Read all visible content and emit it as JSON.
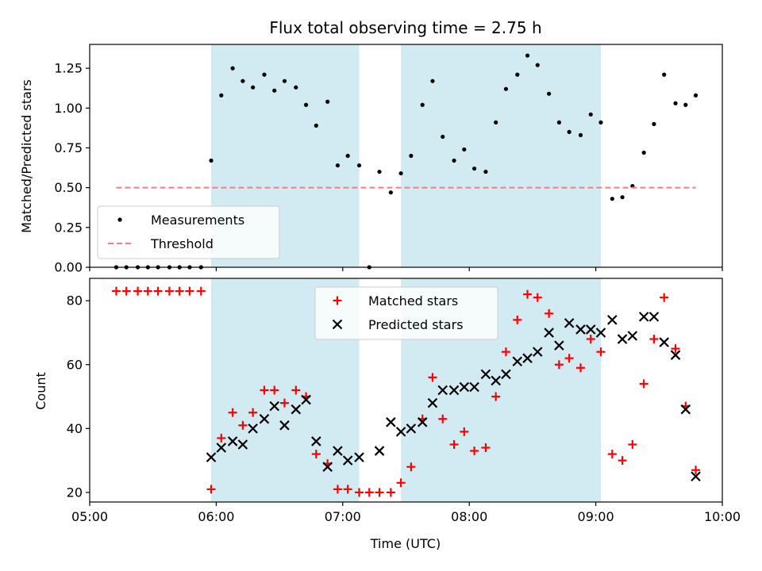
{
  "chart_data": {
    "type": "scatter",
    "title": "Flux total observing time = 2.75 h",
    "xlabel": "Time (UTC)",
    "x_unit": "hours UTC",
    "xlim": [
      5.0,
      10.0
    ],
    "x_ticks": [
      5,
      6,
      7,
      8,
      9,
      10
    ],
    "x_tick_labels": [
      "05:00",
      "06:00",
      "07:00",
      "08:00",
      "09:00",
      "10:00"
    ],
    "shaded_intervals": [
      [
        5.96,
        7.13
      ],
      [
        7.46,
        9.04
      ]
    ],
    "shade_color": "#add8e6",
    "panels": [
      {
        "ylabel": "Matched/Predicted stars",
        "ylim": [
          0,
          1.4
        ],
        "y_ticks": [
          0,
          0.25,
          0.5,
          0.75,
          1.0,
          1.25
        ],
        "y_tick_labels": [
          "0.00",
          "0.25",
          "0.50",
          "0.75",
          "1.00",
          "1.25"
        ],
        "legend_position": "lower-left",
        "series": [
          {
            "name": "Measurements",
            "marker": "dot",
            "color": "#000000",
            "points": [
              [
                5.21,
                0
              ],
              [
                5.29,
                0
              ],
              [
                5.38,
                0
              ],
              [
                5.46,
                0
              ],
              [
                5.54,
                0
              ],
              [
                5.63,
                0
              ],
              [
                5.71,
                0
              ],
              [
                5.79,
                0
              ],
              [
                5.88,
                0
              ],
              [
                5.96,
                0.67
              ],
              [
                6.04,
                1.08
              ],
              [
                6.13,
                1.25
              ],
              [
                6.21,
                1.17
              ],
              [
                6.29,
                1.13
              ],
              [
                6.38,
                1.21
              ],
              [
                6.46,
                1.11
              ],
              [
                6.54,
                1.17
              ],
              [
                6.63,
                1.13
              ],
              [
                6.71,
                1.02
              ],
              [
                6.79,
                0.89
              ],
              [
                6.88,
                1.04
              ],
              [
                6.96,
                0.64
              ],
              [
                7.04,
                0.7
              ],
              [
                7.13,
                0.64
              ],
              [
                7.21,
                0
              ],
              [
                7.29,
                0.6
              ],
              [
                7.38,
                0.47
              ],
              [
                7.46,
                0.59
              ],
              [
                7.54,
                0.7
              ],
              [
                7.63,
                1.02
              ],
              [
                7.71,
                1.17
              ],
              [
                7.79,
                0.82
              ],
              [
                7.88,
                0.67
              ],
              [
                7.96,
                0.74
              ],
              [
                8.04,
                0.62
              ],
              [
                8.13,
                0.6
              ],
              [
                8.21,
                0.91
              ],
              [
                8.29,
                1.12
              ],
              [
                8.38,
                1.21
              ],
              [
                8.46,
                1.33
              ],
              [
                8.54,
                1.27
              ],
              [
                8.63,
                1.09
              ],
              [
                8.71,
                0.91
              ],
              [
                8.79,
                0.85
              ],
              [
                8.88,
                0.83
              ],
              [
                8.96,
                0.96
              ],
              [
                9.04,
                0.91
              ],
              [
                9.13,
                0.43
              ],
              [
                9.21,
                0.44
              ],
              [
                9.29,
                0.51
              ],
              [
                9.38,
                0.72
              ],
              [
                9.46,
                0.9
              ],
              [
                9.54,
                1.21
              ],
              [
                9.63,
                1.03
              ],
              [
                9.71,
                1.02
              ],
              [
                9.79,
                1.08
              ]
            ]
          },
          {
            "name": "Threshold",
            "marker": "dashed-line",
            "color": "#f08080",
            "points": [
              [
                5.21,
                0.5
              ],
              [
                9.79,
                0.5
              ]
            ]
          }
        ]
      },
      {
        "ylabel": "Count",
        "ylim": [
          17,
          87
        ],
        "y_ticks": [
          20,
          40,
          60,
          80
        ],
        "y_tick_labels": [
          "20",
          "40",
          "60",
          "80"
        ],
        "legend_position": "top-center",
        "series": [
          {
            "name": "Matched stars",
            "marker": "plus",
            "color": "#ff0000",
            "points": [
              [
                5.21,
                83
              ],
              [
                5.29,
                83
              ],
              [
                5.38,
                83
              ],
              [
                5.46,
                83
              ],
              [
                5.54,
                83
              ],
              [
                5.63,
                83
              ],
              [
                5.71,
                83
              ],
              [
                5.79,
                83
              ],
              [
                5.88,
                83
              ],
              [
                5.96,
                21
              ],
              [
                6.04,
                37
              ],
              [
                6.13,
                45
              ],
              [
                6.21,
                41
              ],
              [
                6.29,
                45
              ],
              [
                6.38,
                52
              ],
              [
                6.46,
                52
              ],
              [
                6.54,
                48
              ],
              [
                6.63,
                52
              ],
              [
                6.71,
                50
              ],
              [
                6.79,
                32
              ],
              [
                6.88,
                29
              ],
              [
                6.96,
                21
              ],
              [
                7.04,
                21
              ],
              [
                7.13,
                20
              ],
              [
                7.21,
                20
              ],
              [
                7.29,
                20
              ],
              [
                7.38,
                20
              ],
              [
                7.46,
                23
              ],
              [
                7.54,
                28
              ],
              [
                7.63,
                43
              ],
              [
                7.71,
                56
              ],
              [
                7.79,
                43
              ],
              [
                7.88,
                35
              ],
              [
                7.96,
                39
              ],
              [
                8.04,
                33
              ],
              [
                8.13,
                34
              ],
              [
                8.21,
                50
              ],
              [
                8.29,
                64
              ],
              [
                8.38,
                74
              ],
              [
                8.46,
                82
              ],
              [
                8.54,
                81
              ],
              [
                8.63,
                76
              ],
              [
                8.71,
                60
              ],
              [
                8.79,
                62
              ],
              [
                8.88,
                59
              ],
              [
                8.96,
                68
              ],
              [
                9.04,
                64
              ],
              [
                9.13,
                32
              ],
              [
                9.21,
                30
              ],
              [
                9.29,
                35
              ],
              [
                9.38,
                54
              ],
              [
                9.46,
                68
              ],
              [
                9.54,
                81
              ],
              [
                9.63,
                65
              ],
              [
                9.71,
                47
              ],
              [
                9.79,
                27
              ]
            ]
          },
          {
            "name": "Predicted stars",
            "marker": "x",
            "color": "#000000",
            "points": [
              [
                5.96,
                31
              ],
              [
                6.04,
                34
              ],
              [
                6.13,
                36
              ],
              [
                6.21,
                35
              ],
              [
                6.29,
                40
              ],
              [
                6.38,
                43
              ],
              [
                6.46,
                47
              ],
              [
                6.54,
                41
              ],
              [
                6.63,
                46
              ],
              [
                6.71,
                49
              ],
              [
                6.79,
                36
              ],
              [
                6.88,
                28
              ],
              [
                6.96,
                33
              ],
              [
                7.04,
                30
              ],
              [
                7.13,
                31
              ],
              [
                7.29,
                33
              ],
              [
                7.38,
                42
              ],
              [
                7.46,
                39
              ],
              [
                7.54,
                40
              ],
              [
                7.63,
                42
              ],
              [
                7.71,
                48
              ],
              [
                7.79,
                52
              ],
              [
                7.88,
                52
              ],
              [
                7.96,
                53
              ],
              [
                8.04,
                53
              ],
              [
                8.13,
                57
              ],
              [
                8.21,
                55
              ],
              [
                8.29,
                57
              ],
              [
                8.38,
                61
              ],
              [
                8.46,
                62
              ],
              [
                8.54,
                64
              ],
              [
                8.63,
                70
              ],
              [
                8.71,
                66
              ],
              [
                8.79,
                73
              ],
              [
                8.88,
                71
              ],
              [
                8.96,
                71
              ],
              [
                9.04,
                70
              ],
              [
                9.13,
                74
              ],
              [
                9.21,
                68
              ],
              [
                9.29,
                69
              ],
              [
                9.38,
                75
              ],
              [
                9.46,
                75
              ],
              [
                9.54,
                67
              ],
              [
                9.63,
                63
              ],
              [
                9.71,
                46
              ],
              [
                9.79,
                25
              ]
            ]
          }
        ]
      }
    ]
  }
}
